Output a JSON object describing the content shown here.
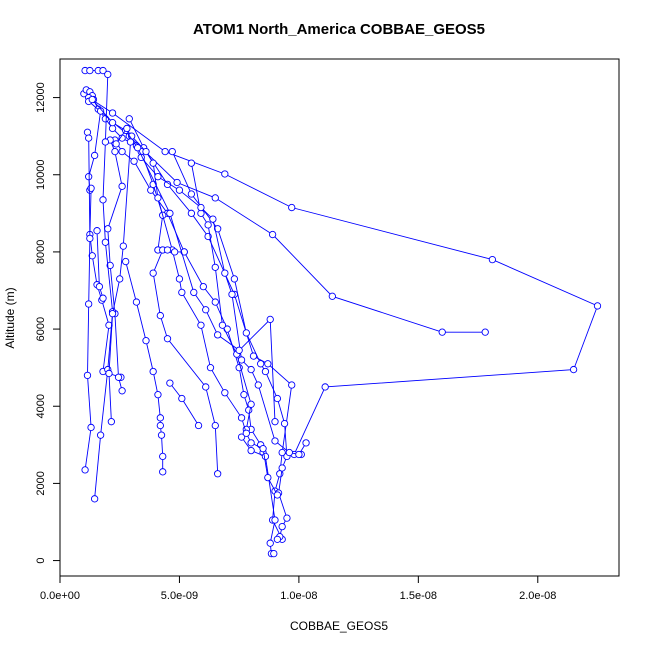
{
  "chart_data": {
    "type": "line",
    "title": "ATOM1 North_America COBBAE_GEOS5",
    "xlabel": "COBBAE_GEOS5",
    "ylabel": "Altitude (m)",
    "xlim": [
      0,
      2.34e-08
    ],
    "ylim": [
      -400,
      13000
    ],
    "x_ticks": [
      0,
      5e-09,
      1e-08,
      1.5e-08,
      2e-08
    ],
    "x_tick_labels": [
      "0.0e+00",
      "5.0e-09",
      "1.0e-08",
      "1.5e-08",
      "2.0e-08"
    ],
    "y_ticks": [
      0,
      2000,
      4000,
      6000,
      8000,
      10000,
      12000
    ],
    "y_tick_labels": [
      "0",
      "2000",
      "4000",
      "6000",
      "8000",
      "10000",
      "12000"
    ],
    "grid": false,
    "series_color": "#0000ff",
    "marker": "open-circle",
    "series": [
      {
        "name": "",
        "points": [
          [
            1.05e-09,
            12700
          ],
          [
            1.25e-09,
            12700
          ],
          [
            1.6e-09,
            12700
          ],
          [
            1.8e-09,
            12700
          ]
        ]
      },
      {
        "name": "",
        "points": [
          [
            1e-09,
            12100
          ],
          [
            1.1e-09,
            12200
          ],
          [
            1.25e-09,
            12150
          ],
          [
            1.35e-09,
            12050
          ],
          [
            1.4e-09,
            11950
          ],
          [
            1.6e-09,
            11700
          ],
          [
            1.9e-09,
            11450
          ],
          [
            2.2e-09,
            11200
          ],
          [
            2.6e-09,
            10950
          ],
          [
            3.2e-09,
            10750
          ]
        ]
      },
      {
        "name": "",
        "points": [
          [
            1.2e-09,
            12000
          ],
          [
            2.2e-09,
            11600
          ],
          [
            4.4e-09,
            10600
          ],
          [
            6.9e-09,
            10020
          ],
          [
            9.7e-09,
            9150
          ],
          [
            1.81e-08,
            7800
          ],
          [
            2.25e-08,
            6600
          ],
          [
            2.15e-08,
            4950
          ],
          [
            1.11e-08,
            4500
          ],
          [
            9.8e-09,
            2750
          ],
          [
            1.01e-08,
            2750
          ]
        ]
      },
      {
        "name": "",
        "points": [
          [
            1.2e-09,
            11900
          ],
          [
            2.9e-09,
            11000
          ],
          [
            4.9e-09,
            9800
          ],
          [
            6.5e-09,
            9400
          ],
          [
            8.9e-09,
            8450
          ],
          [
            1.14e-08,
            6850
          ],
          [
            1.6e-08,
            5920
          ],
          [
            1.78e-08,
            5920
          ]
        ]
      },
      {
        "name": "",
        "points": [
          [
            1.7e-09,
            11650
          ],
          [
            1.45e-09,
            10500
          ],
          [
            1.2e-09,
            9950
          ],
          [
            1.25e-09,
            9600
          ],
          [
            1.3e-09,
            9650
          ],
          [
            1.25e-09,
            8450
          ],
          [
            1.35e-09,
            7900
          ],
          [
            1.55e-09,
            7150
          ],
          [
            1.75e-09,
            6750
          ],
          [
            2.05e-09,
            6100
          ],
          [
            1.8e-09,
            4900
          ],
          [
            2.55e-09,
            4750
          ]
        ]
      },
      {
        "name": "",
        "points": [
          [
            2.3e-09,
            10900
          ],
          [
            2.6e-09,
            10600
          ],
          [
            3.1e-09,
            10350
          ],
          [
            3.8e-09,
            9600
          ],
          [
            4.5e-09,
            9000
          ],
          [
            5.2e-09,
            8000
          ],
          [
            6e-09,
            7100
          ],
          [
            6.5e-09,
            6700
          ],
          [
            7e-09,
            6000
          ],
          [
            7.5e-09,
            5000
          ],
          [
            7.7e-09,
            4300
          ],
          [
            7.9e-09,
            3900
          ],
          [
            8e-09,
            3400
          ],
          [
            8.4e-09,
            3000
          ],
          [
            8.5e-09,
            2800
          ]
        ]
      },
      {
        "name": "",
        "points": [
          [
            2.9e-09,
            11450
          ],
          [
            3.5e-09,
            10700
          ],
          [
            4.5e-09,
            9750
          ],
          [
            5.5e-09,
            9000
          ],
          [
            6.2e-09,
            8400
          ],
          [
            7.3e-09,
            6900
          ],
          [
            8.1e-09,
            5300
          ],
          [
            8.7e-09,
            5100
          ],
          [
            9.7e-09,
            4550
          ],
          [
            9.3e-09,
            2800
          ],
          [
            9.2e-09,
            2250
          ],
          [
            9e-09,
            1800
          ],
          [
            8.9e-09,
            1050
          ],
          [
            9.3e-09,
            550
          ]
        ]
      },
      {
        "name": "",
        "points": [
          [
            3.4e-09,
            10600
          ],
          [
            3.9e-09,
            9750
          ],
          [
            4.3e-09,
            8950
          ],
          [
            4.1e-09,
            8050
          ],
          [
            4.3e-09,
            8050
          ],
          [
            3.9e-09,
            7450
          ],
          [
            4.2e-09,
            6350
          ],
          [
            4.5e-09,
            5750
          ],
          [
            6.1e-09,
            4500
          ],
          [
            6.5e-09,
            3500
          ],
          [
            6.6e-09,
            2250
          ]
        ]
      },
      {
        "name": "",
        "points": [
          [
            2.1e-09,
            10900
          ],
          [
            2.3e-09,
            10600
          ],
          [
            2.6e-09,
            9700
          ],
          [
            2e-09,
            8600
          ],
          [
            2.1e-09,
            7650
          ],
          [
            2.3e-09,
            6400
          ],
          [
            2.45e-09,
            4750
          ],
          [
            2.6e-09,
            4400
          ]
        ]
      },
      {
        "name": "",
        "points": [
          [
            2e-09,
            12600
          ],
          [
            1.9e-09,
            10850
          ],
          [
            1.8e-09,
            9350
          ],
          [
            1.9e-09,
            8250
          ],
          [
            2.2e-09,
            6450
          ],
          [
            2e-09,
            4950
          ],
          [
            1.7e-09,
            3250
          ],
          [
            1.45e-09,
            1600
          ]
        ]
      },
      {
        "name": "",
        "points": [
          [
            1.15e-09,
            11100
          ],
          [
            1.2e-09,
            10950
          ],
          [
            1.25e-09,
            8350
          ],
          [
            1.2e-09,
            6650
          ],
          [
            1.15e-09,
            4800
          ],
          [
            1.3e-09,
            3450
          ],
          [
            1.05e-09,
            2350
          ]
        ]
      },
      {
        "name": "",
        "points": [
          [
            2.75e-09,
            7750
          ],
          [
            3.2e-09,
            6700
          ],
          [
            3.6e-09,
            5700
          ],
          [
            3.9e-09,
            4900
          ],
          [
            4.1e-09,
            4300
          ],
          [
            4.2e-09,
            3700
          ],
          [
            4.2e-09,
            3500
          ],
          [
            4.25e-09,
            3250
          ],
          [
            4.3e-09,
            2700
          ],
          [
            4.3e-09,
            2300
          ]
        ]
      },
      {
        "name": "",
        "points": [
          [
            5.5e-09,
            10300
          ],
          [
            5.9e-09,
            9000
          ],
          [
            6.2e-09,
            8700
          ],
          [
            6.5e-09,
            7600
          ],
          [
            6.8e-09,
            6100
          ],
          [
            7.4e-09,
            5350
          ],
          [
            8e-09,
            4050
          ],
          [
            7.8e-09,
            3400
          ],
          [
            7.6e-09,
            3200
          ],
          [
            8e-09,
            2850
          ],
          [
            8.6e-09,
            2700
          ],
          [
            9e-09,
            1050
          ],
          [
            8.8e-09,
            450
          ],
          [
            8.85e-09,
            180
          ],
          [
            8.95e-09,
            180
          ]
        ]
      },
      {
        "name": "",
        "points": [
          [
            4.7e-09,
            10600
          ],
          [
            5.5e-09,
            9500
          ],
          [
            6.6e-09,
            8600
          ],
          [
            7.3e-09,
            7300
          ],
          [
            7.8e-09,
            5900
          ],
          [
            8.4e-09,
            5100
          ],
          [
            8.6e-09,
            4900
          ],
          [
            9.1e-09,
            4200
          ],
          [
            9.4e-09,
            3550
          ],
          [
            9.5e-09,
            2700
          ],
          [
            9.3e-09,
            2400
          ],
          [
            9.15e-09,
            1750
          ],
          [
            9.5e-09,
            1100
          ],
          [
            9.3e-09,
            880
          ],
          [
            9.2e-09,
            620
          ],
          [
            9.1e-09,
            550
          ]
        ]
      },
      {
        "name": "",
        "points": [
          [
            3e-09,
            11000
          ],
          [
            3.6e-09,
            10600
          ],
          [
            3.9e-09,
            10300
          ],
          [
            4.1e-09,
            9400
          ],
          [
            4.7e-09,
            8050
          ],
          [
            5e-09,
            7300
          ],
          [
            5.1e-09,
            6950
          ],
          [
            5.9e-09,
            6100
          ],
          [
            6.3e-09,
            5000
          ],
          [
            6.9e-09,
            4350
          ],
          [
            7.6e-09,
            3700
          ],
          [
            7.8e-09,
            3300
          ],
          [
            8e-09,
            3050
          ],
          [
            8.5e-09,
            2900
          ],
          [
            8.7e-09,
            2150
          ],
          [
            9.1e-09,
            1700
          ]
        ]
      },
      {
        "name": "",
        "points": [
          [
            3.4e-09,
            10450
          ],
          [
            4.1e-09,
            9950
          ],
          [
            5e-09,
            9600
          ],
          [
            5.9e-09,
            9150
          ],
          [
            6.4e-09,
            8850
          ],
          [
            6.9e-09,
            7450
          ],
          [
            7.2e-09,
            6900
          ],
          [
            7.6e-09,
            5200
          ],
          [
            8e-09,
            4950
          ],
          [
            8.3e-09,
            4550
          ],
          [
            9e-09,
            3100
          ],
          [
            9.6e-09,
            2800
          ],
          [
            1e-08,
            2750
          ],
          [
            1.03e-08,
            3050
          ]
        ]
      },
      {
        "name": "",
        "points": [
          [
            4.1e-09,
            8050
          ],
          [
            4.3e-09,
            8050
          ],
          [
            4.5e-09,
            8050
          ],
          [
            4.8e-09,
            8000
          ],
          [
            5.2e-09,
            8000
          ]
        ]
      },
      {
        "name": "",
        "points": [
          [
            1.35e-09,
            11950
          ],
          [
            2.2e-09,
            11350
          ],
          [
            2.75e-09,
            11150
          ],
          [
            3.25e-09,
            10700
          ],
          [
            4.6e-09,
            9000
          ],
          [
            5.6e-09,
            6950
          ],
          [
            6.1e-09,
            6500
          ],
          [
            6.6e-09,
            5850
          ],
          [
            7.5e-09,
            5450
          ],
          [
            8.8e-09,
            6250
          ],
          [
            9e-09,
            3600
          ]
        ]
      },
      {
        "name": "",
        "points": [
          [
            2.35e-09,
            10800
          ],
          [
            2.8e-09,
            11200
          ],
          [
            2.95e-09,
            10850
          ],
          [
            2.65e-09,
            8150
          ],
          [
            2.5e-09,
            7300
          ],
          [
            2.2e-09,
            6400
          ],
          [
            2.05e-09,
            4850
          ],
          [
            2.15e-09,
            3600
          ]
        ]
      },
      {
        "name": "",
        "points": [
          [
            1.55e-09,
            8550
          ],
          [
            1.65e-09,
            7100
          ],
          [
            1.8e-09,
            6800
          ]
        ]
      },
      {
        "name": "",
        "points": [
          [
            5.8e-09,
            3500
          ],
          [
            5.1e-09,
            4200
          ],
          [
            4.6e-09,
            4600
          ]
        ]
      }
    ]
  }
}
